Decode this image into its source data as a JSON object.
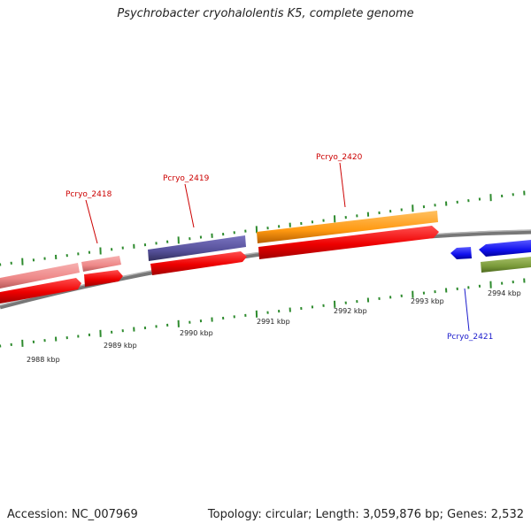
{
  "title": "Psychrobacter cryohalolentis K5, complete genome",
  "footer": {
    "accession": "Accession: NC_007969",
    "summary": "Topology: circular; Length: 3,059,876 bp; Genes: 2,532"
  },
  "scale_labels": [
    "2988 kbp",
    "2989 kbp",
    "2990 kbp",
    "2991 kbp",
    "2992 kbp",
    "2993 kbp",
    "2994 kbp"
  ],
  "gene_labels": [
    {
      "name": "Pcryo_2418",
      "color": "#cc0000"
    },
    {
      "name": "Pcryo_2419",
      "color": "#cc0000"
    },
    {
      "name": "Pcryo_2420",
      "color": "#cc0000"
    },
    {
      "name": "Pcryo_2421",
      "color": "#1a1acc"
    }
  ],
  "colors": {
    "backbone": "#8c8c8c",
    "tick": "#2e8b2e",
    "cds": "#ee1111",
    "pink_gene": "#ee8888",
    "purple_gene": "#55509a",
    "orange_gene": "#ff9911",
    "blue_gene": "#1111ee",
    "olive_gene": "#7a9a3a"
  }
}
